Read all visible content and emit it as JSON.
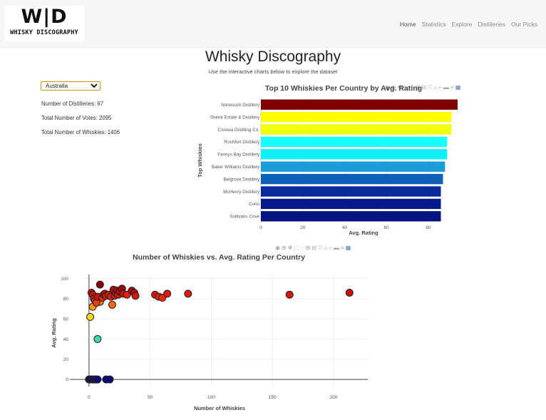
{
  "header": {
    "logo_mark": "W|D",
    "logo_text": "WHISKY DISCOGRAPHY",
    "nav": [
      {
        "label": "Home",
        "active": true
      },
      {
        "label": "Statistics",
        "active": false
      },
      {
        "label": "Explore",
        "active": false
      },
      {
        "label": "Distilleries",
        "active": false
      },
      {
        "label": "Our Picks",
        "active": false
      }
    ]
  },
  "main": {
    "title": "Whisky Discography",
    "subtitle": "Use the interactive charts below to explore the dataset"
  },
  "controls": {
    "country_selected": "Australia"
  },
  "stats": {
    "distilleries": "Number of Distilleries: 67",
    "votes": "Total Number of Votes: 2095",
    "whiskies": "Total Number of Whiskies: 1406"
  },
  "modebar_icons": [
    "camera-icon",
    "zoom-icon",
    "pan-icon",
    "box-select-icon",
    "lasso-icon",
    "zoom-in-icon",
    "zoom-out-icon",
    "autoscale-icon",
    "reset-axes-icon",
    "spike-lines-icon",
    "hover-closest-icon",
    "hover-compare-icon",
    "plotly-logo-icon"
  ],
  "chart_data": [
    {
      "type": "bar",
      "orientation": "horizontal",
      "title": "Top 10 Whiskies Per Country by Avg. Rating",
      "xlabel": "Avg. Rating",
      "ylabel": "Top Whiskies",
      "xlim": [
        0,
        94
      ],
      "xticks": [
        0,
        20,
        40,
        60,
        80
      ],
      "categories": [
        "Nonesuch Distillery",
        "Shene Estate & Distillery",
        "Corowa Distilling Co.",
        "Rochfort Distillery",
        "Fannys Bay Distillery",
        "Baker Williams Distillery",
        "Belgrove Distillery",
        "McHenry Distillery",
        "Corio",
        "Sullivans Cove"
      ],
      "values": [
        94,
        91,
        91,
        89,
        89,
        88,
        87,
        86,
        86,
        86
      ],
      "colors": [
        "#7f0000",
        "#ffff00",
        "#f0ff10",
        "#1affff",
        "#10f0f8",
        "#1a9cd8",
        "#1060b8",
        "#0a2a9a",
        "#07198a",
        "#061480"
      ],
      "grid": true
    },
    {
      "type": "scatter",
      "title": "Number of Whiskies vs. Avg. Rating Per Country",
      "xlabel": "Number of Whiskies",
      "ylabel": "Avg. Rating",
      "xlim": [
        -4,
        228
      ],
      "ylim": [
        -7,
        104
      ],
      "xticks": [
        0,
        50,
        100,
        150,
        200
      ],
      "yticks": [
        0,
        20,
        40,
        60,
        80,
        100
      ],
      "grid": true,
      "points": [
        {
          "x": 0,
          "y": 0,
          "color": "#0a0a7a"
        },
        {
          "x": 1,
          "y": 0,
          "color": "#0a0a7a"
        },
        {
          "x": 2,
          "y": 0,
          "color": "#0a0a7a"
        },
        {
          "x": 3,
          "y": 0,
          "color": "#0a0a7a"
        },
        {
          "x": 4,
          "y": 0,
          "color": "#0a0a7a"
        },
        {
          "x": 5,
          "y": 0,
          "color": "#0a0a7a"
        },
        {
          "x": 6,
          "y": 0,
          "color": "#0a0a7a"
        },
        {
          "x": 7,
          "y": 0,
          "color": "#0a0a7a"
        },
        {
          "x": 14,
          "y": 0,
          "color": "#0a0a7a"
        },
        {
          "x": 17,
          "y": 0,
          "color": "#0a0a7a"
        },
        {
          "x": 1,
          "y": 62,
          "color": "#ffd21a"
        },
        {
          "x": 7,
          "y": 40,
          "color": "#3ed9b0"
        },
        {
          "x": 3,
          "y": 72,
          "color": "#ff9a10"
        },
        {
          "x": 9,
          "y": 77,
          "color": "#ff7a10"
        },
        {
          "x": 19,
          "y": 74,
          "color": "#ff6a10"
        },
        {
          "x": 2,
          "y": 86,
          "color": "#c81010"
        },
        {
          "x": 3,
          "y": 84,
          "color": "#c81010"
        },
        {
          "x": 4,
          "y": 80,
          "color": "#d81a10"
        },
        {
          "x": 5,
          "y": 78,
          "color": "#e82a10"
        },
        {
          "x": 6,
          "y": 76,
          "color": "#ee3a10"
        },
        {
          "x": 7,
          "y": 82,
          "color": "#cc1010"
        },
        {
          "x": 9,
          "y": 94,
          "color": "#8a0000"
        },
        {
          "x": 11,
          "y": 81,
          "color": "#ee2a10"
        },
        {
          "x": 12,
          "y": 84,
          "color": "#c81010"
        },
        {
          "x": 13,
          "y": 85,
          "color": "#b80808"
        },
        {
          "x": 14,
          "y": 83,
          "color": "#e01e10"
        },
        {
          "x": 16,
          "y": 84,
          "color": "#d01810"
        },
        {
          "x": 18,
          "y": 82,
          "color": "#e02010"
        },
        {
          "x": 20,
          "y": 89,
          "color": "#b00808"
        },
        {
          "x": 21,
          "y": 83,
          "color": "#d81a10"
        },
        {
          "x": 22,
          "y": 86,
          "color": "#c01010"
        },
        {
          "x": 23,
          "y": 88,
          "color": "#a80808"
        },
        {
          "x": 24,
          "y": 84,
          "color": "#d01810"
        },
        {
          "x": 25,
          "y": 87,
          "color": "#b80808"
        },
        {
          "x": 27,
          "y": 90,
          "color": "#a00505"
        },
        {
          "x": 28,
          "y": 85,
          "color": "#c81010"
        },
        {
          "x": 31,
          "y": 84,
          "color": "#e81e10"
        },
        {
          "x": 35,
          "y": 88,
          "color": "#a80808"
        },
        {
          "x": 37,
          "y": 86,
          "color": "#b80808"
        },
        {
          "x": 38,
          "y": 83,
          "color": "#d01810"
        },
        {
          "x": 54,
          "y": 84,
          "color": "#d81810"
        },
        {
          "x": 57,
          "y": 82,
          "color": "#e02010"
        },
        {
          "x": 60,
          "y": 81,
          "color": "#e82810"
        },
        {
          "x": 64,
          "y": 85,
          "color": "#dd1a10"
        },
        {
          "x": 81,
          "y": 85,
          "color": "#e01810"
        },
        {
          "x": 164,
          "y": 84,
          "color": "#d81510"
        },
        {
          "x": 213,
          "y": 86,
          "color": "#cc1010"
        }
      ]
    }
  ]
}
